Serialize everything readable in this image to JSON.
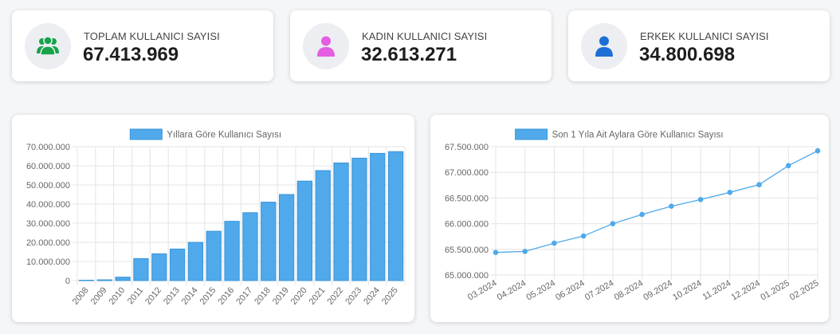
{
  "stats": [
    {
      "label": "TOPLAM KULLANICI SAYISI",
      "value": "67.413.969",
      "icon": "users-group-icon",
      "color": "#16a34a"
    },
    {
      "label": "KADIN KULLANICI SAYISI",
      "value": "32.613.271",
      "icon": "female-user-icon",
      "color": "#e35ee3"
    },
    {
      "label": "ERKEK KULLANICI SAYISI",
      "value": "34.800.698",
      "icon": "male-user-icon",
      "color": "#1d6fd6"
    }
  ],
  "chart_data": [
    {
      "type": "bar",
      "legend": "Yıllara Göre Kullanıcı Sayısı",
      "categories": [
        "2008",
        "2009",
        "2010",
        "2011",
        "2012",
        "2013",
        "2014",
        "2015",
        "2016",
        "2017",
        "2018",
        "2019",
        "2020",
        "2021",
        "2022",
        "2023",
        "2024",
        "2025"
      ],
      "values": [
        200000,
        400000,
        1800000,
        11500000,
        14000000,
        16500000,
        20000000,
        25800000,
        31000000,
        35500000,
        41000000,
        45000000,
        52000000,
        57500000,
        61500000,
        64000000,
        66500000,
        67400000
      ],
      "ylim": [
        0,
        70000000
      ],
      "yticks": [
        "0",
        "10.000.000",
        "20.000.000",
        "30.000.000",
        "40.000.000",
        "50.000.000",
        "60.000.000",
        "70.000.000"
      ],
      "grid": true,
      "legend_position": "top",
      "color": "#4fa9eb"
    },
    {
      "type": "line",
      "legend": "Son 1 Yıla Ait Aylara Göre Kullanıcı Sayısı",
      "categories": [
        "03.2024",
        "04.2024",
        "05.2024",
        "06.2024",
        "07.2024",
        "08.2024",
        "09.2024",
        "10.2024",
        "11.2024",
        "12.2024",
        "01.2025",
        "02.2025"
      ],
      "values": [
        65440000,
        65460000,
        65620000,
        65760000,
        66000000,
        66180000,
        66340000,
        66470000,
        66610000,
        66760000,
        67130000,
        67420000
      ],
      "ylim": [
        65000000,
        67500000
      ],
      "yticks": [
        "65.000.000",
        "65.500.000",
        "66.000.000",
        "66.500.000",
        "67.000.000",
        "67.500.000"
      ],
      "grid": true,
      "legend_position": "top",
      "color": "#4fa9eb"
    }
  ]
}
